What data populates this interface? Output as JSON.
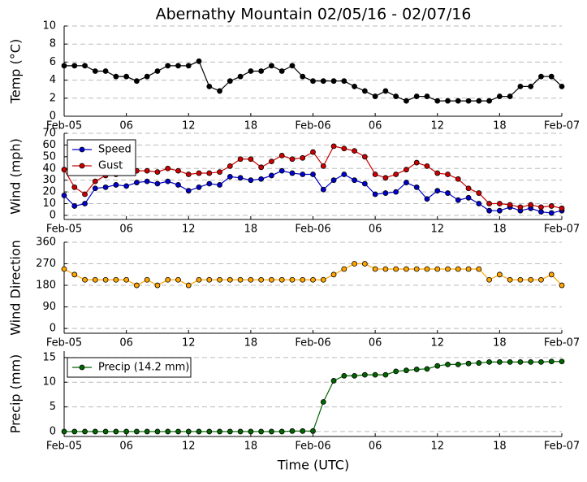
{
  "title": "Abernathy Mountain 02/05/16 - 02/07/16",
  "x_label": "Time (UTC)",
  "chart_data": [
    {
      "type": "line",
      "y_label": "Temp (°C)",
      "categories": [
        "Feb-05",
        null,
        null,
        null,
        null,
        null,
        "06",
        null,
        null,
        null,
        null,
        null,
        "12",
        null,
        null,
        null,
        null,
        null,
        "18",
        null,
        null,
        null,
        null,
        null,
        "Feb-06",
        null,
        null,
        null,
        null,
        null,
        "06",
        null,
        null,
        null,
        null,
        null,
        "12",
        null,
        null,
        null,
        null,
        null,
        "18",
        null,
        null,
        null,
        null,
        null,
        "Feb-07"
      ],
      "series": [
        {
          "name": "Temp",
          "color": "#000000",
          "values": [
            5.6,
            5.6,
            5.6,
            5.0,
            5.0,
            4.4,
            4.4,
            3.9,
            4.4,
            5.0,
            5.6,
            5.6,
            5.6,
            6.1,
            3.3,
            2.8,
            3.9,
            4.4,
            5.0,
            5.0,
            5.6,
            5.0,
            5.6,
            4.4,
            3.9,
            3.9,
            3.9,
            3.9,
            3.3,
            2.8,
            2.2,
            2.8,
            2.2,
            1.7,
            2.2,
            2.2,
            1.7,
            1.7,
            1.7,
            1.7,
            1.7,
            1.7,
            2.2,
            2.2,
            3.3,
            3.3,
            4.4,
            4.4,
            3.3
          ]
        }
      ],
      "ylim": [
        0,
        10
      ],
      "yticks": [
        0,
        2,
        4,
        6,
        8,
        10
      ],
      "grid": true,
      "legend": false
    },
    {
      "type": "line",
      "y_label": "Wind (mph)",
      "categories": [
        "Feb-05",
        null,
        null,
        null,
        null,
        null,
        "06",
        null,
        null,
        null,
        null,
        null,
        "12",
        null,
        null,
        null,
        null,
        null,
        "18",
        null,
        null,
        null,
        null,
        null,
        "Feb-06",
        null,
        null,
        null,
        null,
        null,
        "06",
        null,
        null,
        null,
        null,
        null,
        "12",
        null,
        null,
        null,
        null,
        null,
        "18",
        null,
        null,
        null,
        null,
        null,
        "Feb-07"
      ],
      "series": [
        {
          "name": "Speed",
          "color": "#0000cc",
          "values": [
            17,
            8,
            10,
            23,
            24,
            26,
            25,
            28,
            29,
            27,
            29,
            26,
            21,
            24,
            27,
            26,
            33,
            32,
            30,
            31,
            34,
            38,
            36,
            35,
            35,
            22,
            30,
            35,
            30,
            27,
            18,
            19,
            20,
            28,
            24,
            14,
            21,
            19,
            13,
            15,
            10,
            4,
            4,
            7,
            4,
            6,
            3,
            2,
            4
          ]
        },
        {
          "name": "Gust",
          "color": "#cc0000",
          "values": [
            39,
            24,
            18,
            29,
            34,
            35,
            36,
            38,
            38,
            37,
            40,
            38,
            35,
            36,
            36,
            37,
            42,
            48,
            48,
            41,
            46,
            51,
            48,
            49,
            54,
            42,
            59,
            57,
            55,
            50,
            35,
            32,
            35,
            39,
            45,
            42,
            36,
            35,
            31,
            23,
            19,
            10,
            10,
            9,
            7,
            9,
            7,
            8,
            6
          ]
        }
      ],
      "ylim": [
        -3.5,
        70
      ],
      "yticks": [
        0,
        10,
        20,
        30,
        40,
        50,
        60,
        70
      ],
      "grid": true,
      "legend": "upper left"
    },
    {
      "type": "line",
      "y_label": "Wind Direction",
      "categories": [
        "Feb-05",
        null,
        null,
        null,
        null,
        null,
        "06",
        null,
        null,
        null,
        null,
        null,
        "12",
        null,
        null,
        null,
        null,
        null,
        "18",
        null,
        null,
        null,
        null,
        null,
        "Feb-06",
        null,
        null,
        null,
        null,
        null,
        "06",
        null,
        null,
        null,
        null,
        null,
        "12",
        null,
        null,
        null,
        null,
        null,
        "18",
        null,
        null,
        null,
        null,
        null,
        "Feb-07"
      ],
      "series": [
        {
          "name": "Direction",
          "color": "#ffa500",
          "values": [
            248,
            225,
            203,
            203,
            203,
            203,
            203,
            180,
            203,
            180,
            203,
            203,
            180,
            203,
            203,
            203,
            203,
            203,
            203,
            203,
            203,
            203,
            203,
            203,
            203,
            203,
            225,
            248,
            270,
            270,
            248,
            248,
            248,
            248,
            248,
            248,
            248,
            248,
            248,
            248,
            248,
            203,
            225,
            203,
            203,
            203,
            203,
            225,
            180
          ]
        }
      ],
      "ylim": [
        -20,
        360
      ],
      "yticks": [
        0,
        90,
        180,
        270,
        360
      ],
      "grid": true,
      "legend": false
    },
    {
      "type": "line",
      "y_label": "Precip (mm)",
      "categories": [
        "Feb-05",
        null,
        null,
        null,
        null,
        null,
        "06",
        null,
        null,
        null,
        null,
        null,
        "12",
        null,
        null,
        null,
        null,
        null,
        "18",
        null,
        null,
        null,
        null,
        null,
        "Feb-06",
        null,
        null,
        null,
        null,
        null,
        "06",
        null,
        null,
        null,
        null,
        null,
        "12",
        null,
        null,
        null,
        null,
        null,
        "18",
        null,
        null,
        null,
        null,
        null,
        "Feb-07"
      ],
      "series": [
        {
          "name": "Precip (14.2 mm)",
          "color": "#006400",
          "values": [
            0,
            0,
            0,
            0,
            0,
            0,
            0,
            0,
            0,
            0,
            0,
            0,
            0,
            0,
            0,
            0,
            0,
            0,
            0,
            0,
            0,
            0,
            0.1,
            0.1,
            0.1,
            6.0,
            10.3,
            11.3,
            11.3,
            11.5,
            11.5,
            11.5,
            12.2,
            12.4,
            12.6,
            12.7,
            13.3,
            13.6,
            13.6,
            13.8,
            13.9,
            14.1,
            14.1,
            14.1,
            14.1,
            14.1,
            14.1,
            14.2,
            14.2
          ]
        }
      ],
      "ylim": [
        -1,
        16.3
      ],
      "yticks": [
        0,
        5,
        10,
        15
      ],
      "grid": true,
      "legend": "upper left"
    }
  ]
}
